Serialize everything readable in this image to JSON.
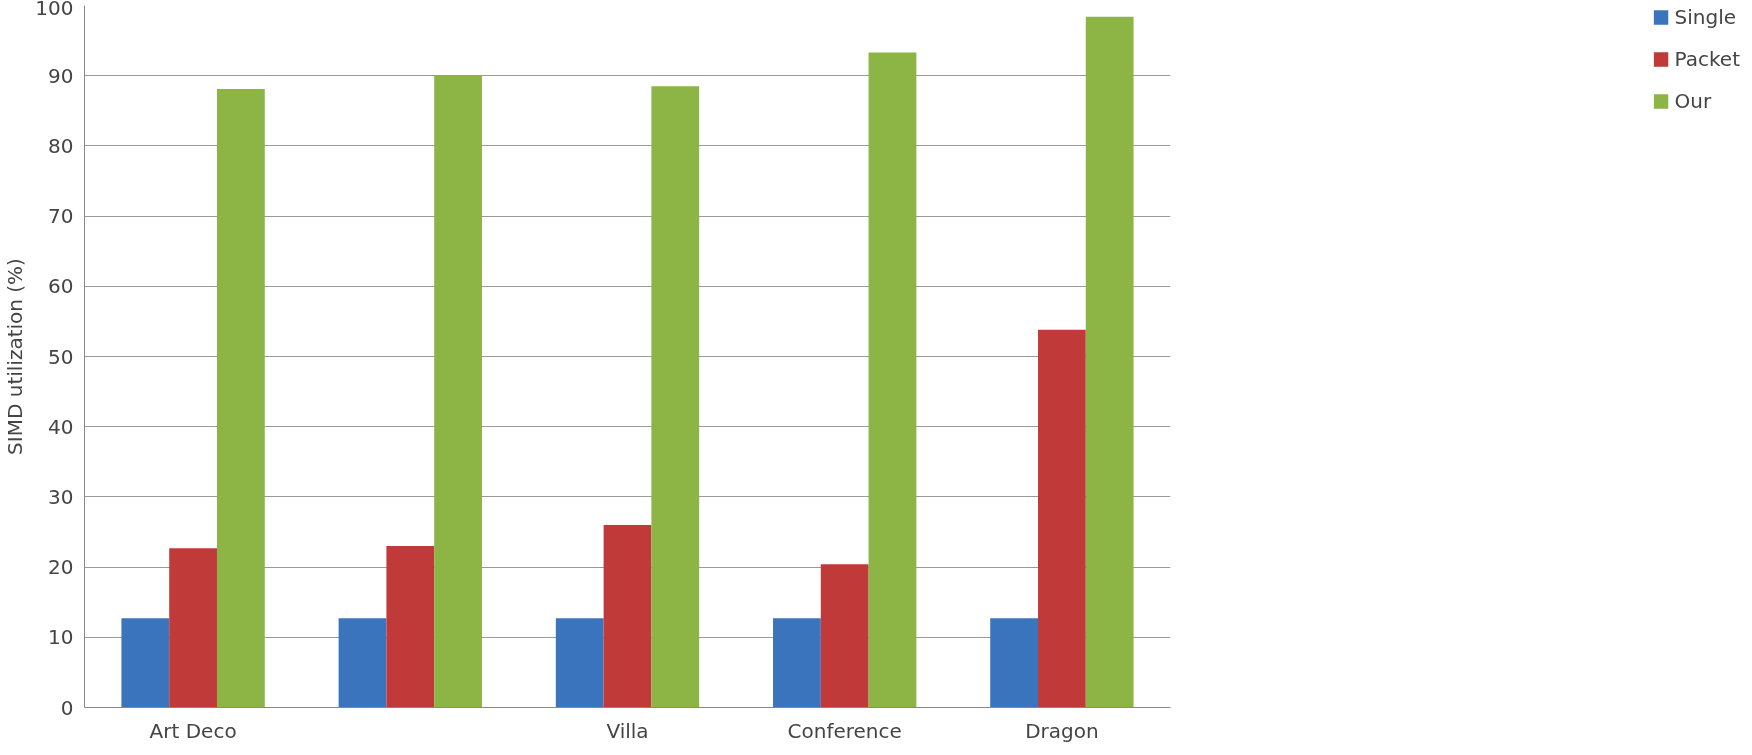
{
  "chart_data": {
    "type": "bar",
    "ylabel": "SIMD utilization (%)",
    "categories": [
      "Art Deco",
      null,
      "Villa",
      "Conference",
      "Dragon"
    ],
    "series": [
      {
        "name": "Single",
        "color": "#3a74bd",
        "values": [
          12.7,
          12.7,
          12.7,
          12.7,
          12.7
        ]
      },
      {
        "name": "Packet",
        "color": "#c03a3a",
        "values": [
          22.7,
          23,
          26,
          20.4,
          53.8
        ]
      },
      {
        "name": "Our",
        "color": "#8cb545",
        "values": [
          88.1,
          90,
          88.5,
          93.3,
          98.4
        ]
      }
    ],
    "ylim": [
      0,
      100
    ],
    "yticks": [
      0,
      10,
      20,
      30,
      40,
      50,
      60,
      70,
      80,
      90,
      100
    ],
    "grid": "y",
    "legend": "right"
  }
}
